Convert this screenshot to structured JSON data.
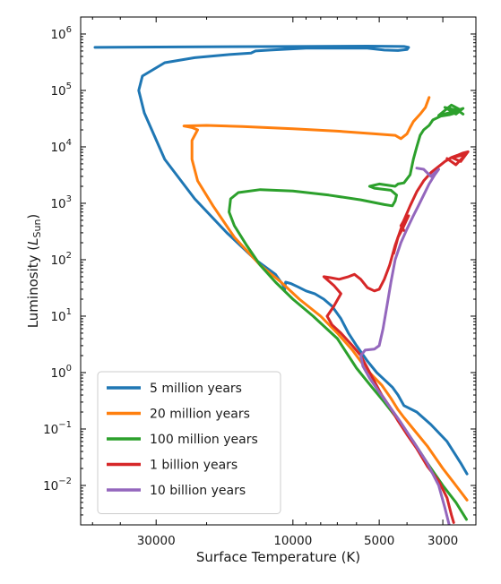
{
  "chart_data": {
    "type": "line",
    "title": "",
    "xlabel": "Surface Temperature (K)",
    "ylabel_prefix": "Luminosity (",
    "ylabel_symbol": "L",
    "ylabel_subscript": "Sun",
    "ylabel_suffix": ")",
    "x_scale": "log",
    "x_reversed": true,
    "y_scale": "log",
    "xlim": [
      55000,
      2300
    ],
    "ylim": [
      0.002,
      2000000
    ],
    "x_ticks": [
      {
        "value": 30000,
        "label": "30000"
      },
      {
        "value": 10000,
        "label": "10000"
      },
      {
        "value": 5000,
        "label": "5000"
      },
      {
        "value": 3000,
        "label": "3000"
      }
    ],
    "y_ticks": [
      {
        "value": 0.01,
        "base": "10",
        "exp": "−2"
      },
      {
        "value": 0.1,
        "base": "10",
        "exp": "−1"
      },
      {
        "value": 1,
        "base": "10",
        "exp": "0"
      },
      {
        "value": 10,
        "base": "10",
        "exp": "1"
      },
      {
        "value": 100,
        "base": "10",
        "exp": "2"
      },
      {
        "value": 1000,
        "base": "10",
        "exp": "3"
      },
      {
        "value": 10000,
        "base": "10",
        "exp": "4"
      },
      {
        "value": 100000,
        "base": "10",
        "exp": "5"
      },
      {
        "value": 1000000,
        "base": "10",
        "exp": "6"
      }
    ],
    "grid": false,
    "legend_position": "lower-left",
    "series": [
      {
        "name": "5 million years",
        "color": "#1f77b4",
        "points": [
          [
            2470,
            0.016
          ],
          [
            2600,
            0.025
          ],
          [
            2900,
            0.06
          ],
          [
            3300,
            0.12
          ],
          [
            3700,
            0.2
          ],
          [
            4100,
            0.26
          ],
          [
            4300,
            0.4
          ],
          [
            4500,
            0.55
          ],
          [
            4800,
            0.75
          ],
          [
            5100,
            1.0
          ],
          [
            5500,
            1.6
          ],
          [
            6000,
            3
          ],
          [
            6400,
            5
          ],
          [
            6800,
            9
          ],
          [
            7300,
            15
          ],
          [
            7800,
            20
          ],
          [
            8400,
            25
          ],
          [
            9000,
            28
          ],
          [
            9600,
            33
          ],
          [
            10200,
            38
          ],
          [
            10600,
            40
          ],
          [
            10700,
            28
          ],
          [
            10800,
            35
          ],
          [
            11500,
            55
          ],
          [
            13500,
            100
          ],
          [
            17000,
            300
          ],
          [
            22000,
            1200
          ],
          [
            28000,
            6000
          ],
          [
            33000,
            40000
          ],
          [
            34500,
            100000
          ],
          [
            33500,
            180000
          ],
          [
            28000,
            310000
          ],
          [
            22000,
            380000
          ],
          [
            17000,
            430000
          ],
          [
            14000,
            460000
          ],
          [
            13500,
            500000
          ],
          [
            12000,
            520000
          ],
          [
            9000,
            560000
          ],
          [
            5500,
            560000
          ],
          [
            4800,
            520000
          ],
          [
            4300,
            510000
          ],
          [
            4000,
            530000
          ],
          [
            3950,
            580000
          ],
          [
            4100,
            600000
          ],
          [
            5500,
            610000
          ],
          [
            10000,
            600000
          ],
          [
            25000,
            590000
          ],
          [
            49000,
            580000
          ]
        ]
      },
      {
        "name": "20 million years",
        "color": "#ff7f0e",
        "points": [
          [
            2470,
            0.0055
          ],
          [
            2700,
            0.01
          ],
          [
            3000,
            0.02
          ],
          [
            3400,
            0.05
          ],
          [
            3800,
            0.1
          ],
          [
            4100,
            0.16
          ],
          [
            4300,
            0.22
          ],
          [
            4550,
            0.35
          ],
          [
            4900,
            0.6
          ],
          [
            5500,
            1.1
          ],
          [
            6200,
            2.5
          ],
          [
            7000,
            5
          ],
          [
            8000,
            10
          ],
          [
            9500,
            20
          ],
          [
            11000,
            40
          ],
          [
            13000,
            80
          ],
          [
            16000,
            250
          ],
          [
            19000,
            900
          ],
          [
            21500,
            2500
          ],
          [
            22500,
            6000
          ],
          [
            22500,
            13000
          ],
          [
            21500,
            20000
          ],
          [
            22500,
            22000
          ],
          [
            24000,
            23500
          ],
          [
            20000,
            24000
          ],
          [
            15000,
            23000
          ],
          [
            10000,
            21000
          ],
          [
            7000,
            19000
          ],
          [
            5200,
            17000
          ],
          [
            4400,
            16000
          ],
          [
            4200,
            14000
          ],
          [
            4000,
            17000
          ],
          [
            3900,
            22000
          ],
          [
            3800,
            28000
          ],
          [
            3600,
            38000
          ],
          [
            3450,
            50000
          ],
          [
            3350,
            75000
          ]
        ]
      },
      {
        "name": "100 million years",
        "color": "#2ca02c",
        "points": [
          [
            2480,
            0.0025
          ],
          [
            2700,
            0.005
          ],
          [
            3000,
            0.01
          ],
          [
            3400,
            0.025
          ],
          [
            3800,
            0.06
          ],
          [
            4100,
            0.1
          ],
          [
            4400,
            0.17
          ],
          [
            4800,
            0.3
          ],
          [
            5300,
            0.55
          ],
          [
            6000,
            1.2
          ],
          [
            7000,
            4
          ],
          [
            8500,
            10
          ],
          [
            10000,
            20
          ],
          [
            11500,
            40
          ],
          [
            13000,
            80
          ],
          [
            14500,
            180
          ],
          [
            16000,
            400
          ],
          [
            16700,
            700
          ],
          [
            16500,
            1200
          ],
          [
            15500,
            1550
          ],
          [
            13000,
            1750
          ],
          [
            10000,
            1650
          ],
          [
            7500,
            1400
          ],
          [
            5800,
            1150
          ],
          [
            4800,
            950
          ],
          [
            4500,
            900
          ],
          [
            4400,
            1100
          ],
          [
            4350,
            1400
          ],
          [
            4550,
            1700
          ],
          [
            5200,
            1850
          ],
          [
            5400,
            2000
          ],
          [
            5000,
            2200
          ],
          [
            4400,
            2000
          ],
          [
            4300,
            2200
          ],
          [
            4100,
            2300
          ],
          [
            3900,
            3200
          ],
          [
            3800,
            6000
          ],
          [
            3700,
            10000
          ],
          [
            3600,
            16000
          ],
          [
            3500,
            20000
          ],
          [
            3350,
            24000
          ],
          [
            3250,
            30000
          ],
          [
            3050,
            35000
          ],
          [
            2850,
            37000
          ],
          [
            2700,
            40000
          ],
          [
            2600,
            45000
          ],
          [
            2800,
            55000
          ],
          [
            3100,
            36000
          ],
          [
            2750,
            42000
          ],
          [
            2550,
            48000
          ],
          [
            2700,
            38000
          ],
          [
            2950,
            50000
          ],
          [
            2650,
            44000
          ],
          [
            2550,
            38000
          ]
        ]
      },
      {
        "name": "1 billion years",
        "color": "#d62728",
        "points": [
          [
            4100,
            330
          ],
          [
            4200,
            400
          ],
          [
            4050,
            550
          ],
          [
            3950,
            600
          ],
          [
            4150,
            350
          ],
          [
            4300,
            250
          ],
          [
            4400,
            180
          ],
          [
            4500,
            120
          ],
          [
            4600,
            80
          ],
          [
            4800,
            45
          ],
          [
            5000,
            30
          ],
          [
            5200,
            28
          ],
          [
            5500,
            32
          ],
          [
            5800,
            45
          ],
          [
            6100,
            55
          ],
          [
            6400,
            50
          ],
          [
            6900,
            45
          ],
          [
            7400,
            48
          ],
          [
            7800,
            50
          ],
          [
            7200,
            35
          ],
          [
            6800,
            25
          ],
          [
            7200,
            15
          ],
          [
            7600,
            10
          ],
          [
            7300,
            7
          ],
          [
            6800,
            5
          ],
          [
            6200,
            3
          ],
          [
            5800,
            2
          ],
          [
            5500,
            1.2
          ],
          [
            5200,
            0.7
          ],
          [
            4900,
            0.4
          ],
          [
            4600,
            0.25
          ],
          [
            4300,
            0.14
          ],
          [
            4000,
            0.08
          ],
          [
            3700,
            0.045
          ],
          [
            3400,
            0.022
          ],
          [
            3100,
            0.012
          ],
          [
            2900,
            0.006
          ],
          [
            2800,
            0.003
          ],
          [
            2750,
            0.0022
          ]
        ]
      },
      {
        "name": "1 billion years upper",
        "color": "#d62728",
        "points": [
          [
            4450,
            130
          ],
          [
            4300,
            250
          ],
          [
            4100,
            500
          ],
          [
            3900,
            900
          ],
          [
            3700,
            1600
          ],
          [
            3500,
            2500
          ],
          [
            3300,
            3500
          ],
          [
            3100,
            4500
          ],
          [
            2950,
            5500
          ],
          [
            2800,
            6500
          ],
          [
            2650,
            7200
          ],
          [
            2550,
            7800
          ],
          [
            2450,
            8200
          ],
          [
            2600,
            5500
          ],
          [
            2800,
            6500
          ],
          [
            2500,
            7300
          ],
          [
            2700,
            4800
          ],
          [
            2900,
            6200
          ]
        ]
      },
      {
        "name": "10 billion years",
        "color": "#9467bd",
        "points": [
          [
            2850,
            0.002
          ],
          [
            2950,
            0.004
          ],
          [
            3100,
            0.01
          ],
          [
            3400,
            0.025
          ],
          [
            3800,
            0.06
          ],
          [
            4200,
            0.13
          ],
          [
            4600,
            0.25
          ],
          [
            5000,
            0.45
          ],
          [
            5400,
            0.8
          ],
          [
            5700,
            1.3
          ],
          [
            5800,
            2.0
          ],
          [
            5600,
            2.5
          ],
          [
            5200,
            2.6
          ],
          [
            5000,
            3
          ],
          [
            4850,
            6
          ],
          [
            4700,
            15
          ],
          [
            4550,
            40
          ],
          [
            4400,
            100
          ],
          [
            4200,
            200
          ],
          [
            4000,
            350
          ],
          [
            3800,
            600
          ],
          [
            3650,
            900
          ],
          [
            3500,
            1400
          ],
          [
            3350,
            2200
          ],
          [
            3200,
            3200
          ],
          [
            3100,
            4000
          ],
          [
            3300,
            3000
          ],
          [
            3500,
            4000
          ],
          [
            3700,
            4200
          ]
        ]
      }
    ],
    "legend": [
      {
        "label": "5 million years",
        "color": "#1f77b4"
      },
      {
        "label": "20 million years",
        "color": "#ff7f0e"
      },
      {
        "label": "100 million years",
        "color": "#2ca02c"
      },
      {
        "label": "1 billion years",
        "color": "#d62728"
      },
      {
        "label": "10 billion years",
        "color": "#9467bd"
      }
    ]
  }
}
